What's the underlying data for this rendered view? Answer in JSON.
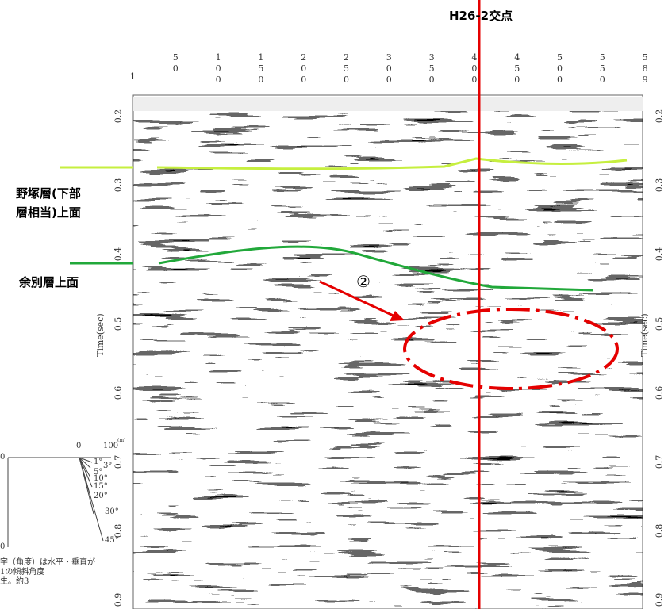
{
  "header": {
    "crossing_label": "H26-2交点"
  },
  "section": {
    "cdp_labels": [
      "1",
      "50",
      "100",
      "150",
      "200",
      "250",
      "300",
      "350",
      "400",
      "450",
      "500",
      "550",
      "589"
    ],
    "time_labels": [
      "0.2",
      "0.3",
      "0.4",
      "0.5",
      "0.6",
      "0.7",
      "0.8",
      "0.9"
    ],
    "axis_label": "Time(sec)"
  },
  "horizons": [
    {
      "label_lines": [
        "野塚層(下部",
        "層相当)上面"
      ]
    },
    {
      "label_lines": [
        "余別層上面"
      ]
    }
  ],
  "marker": "②",
  "legend": {
    "top_left": "0",
    "top_mid": "0",
    "top_right": "100",
    "unit": "(m)",
    "bottom": "0",
    "angles": [
      "1°",
      "3°",
      "5°",
      "10°",
      "15°",
      "20°",
      "30°",
      "45°"
    ],
    "notes": [
      "字（角度）は水平・垂直が",
      "1の傾斜角度",
      "生。約3"
    ]
  }
}
